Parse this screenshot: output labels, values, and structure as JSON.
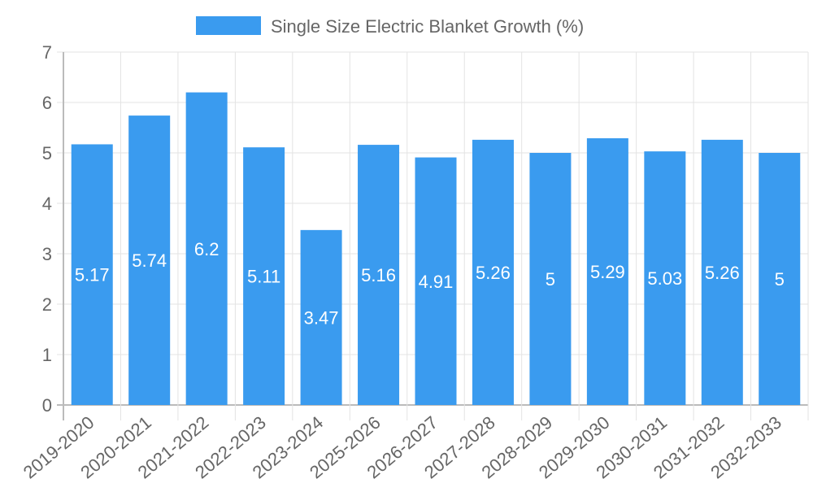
{
  "chart_data": {
    "type": "bar",
    "title": "",
    "legend": [
      {
        "label": "Single Size Electric Blanket Growth (%)",
        "color": "#3a9bef"
      }
    ],
    "legend_position": "top",
    "categories": [
      "2019-2020",
      "2020-2021",
      "2021-2022",
      "2022-2023",
      "2023-2024",
      "2025-2026",
      "2026-2027",
      "2027-2028",
      "2028-2029",
      "2029-2030",
      "2030-2031",
      "2031-2032",
      "2032-2033"
    ],
    "series": [
      {
        "name": "Single Size Electric Blanket Growth (%)",
        "values": [
          5.17,
          5.74,
          6.2,
          5.11,
          3.47,
          5.16,
          4.91,
          5.26,
          5,
          5.29,
          5.03,
          5.26,
          5
        ]
      }
    ],
    "data_labels": [
      "5.17",
      "5.74",
      "6.2",
      "5.11",
      "3.47",
      "5.16",
      "4.91",
      "5.26",
      "5",
      "5.29",
      "5.03",
      "5.26",
      "5"
    ],
    "y_ticks": [
      "0",
      "1",
      "2",
      "3",
      "4",
      "5",
      "6",
      "7"
    ],
    "ylim": [
      0,
      7
    ],
    "xlabel": "",
    "ylabel": "",
    "grid": true
  }
}
